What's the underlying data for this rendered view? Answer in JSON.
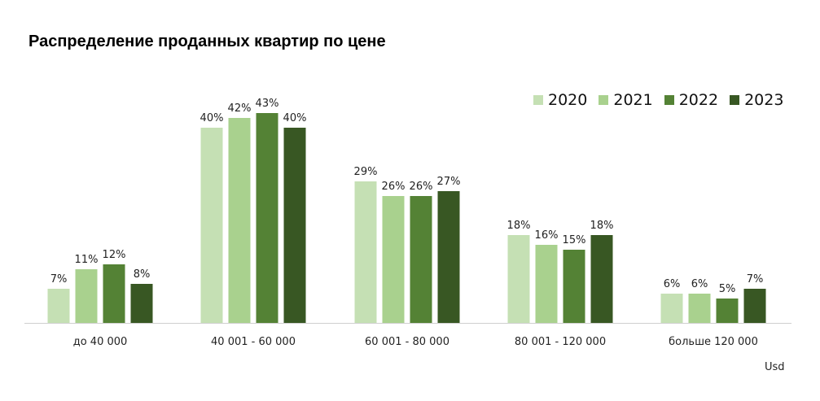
{
  "chart_data": {
    "type": "bar",
    "title": "Распределение проданных квартир по цене",
    "categories": [
      "до 40 000",
      "40 001 - 60 000",
      "60 001 - 80 000",
      "80 001 - 120 000",
      "больше 120 000"
    ],
    "series": [
      {
        "name": "2020",
        "color": "#c5e0b4",
        "values": [
          7,
          40,
          29,
          18,
          6
        ]
      },
      {
        "name": "2021",
        "color": "#a9d18e",
        "values": [
          11,
          42,
          26,
          16,
          6
        ]
      },
      {
        "name": "2022",
        "color": "#548235",
        "values": [
          12,
          43,
          26,
          15,
          5
        ]
      },
      {
        "name": "2023",
        "color": "#385723",
        "values": [
          8,
          40,
          27,
          18,
          7
        ]
      }
    ],
    "value_suffix": "%",
    "xlabel": "Usd",
    "ylabel": "",
    "ylim": [
      0,
      45
    ],
    "grid": false,
    "legend": "top-right"
  }
}
